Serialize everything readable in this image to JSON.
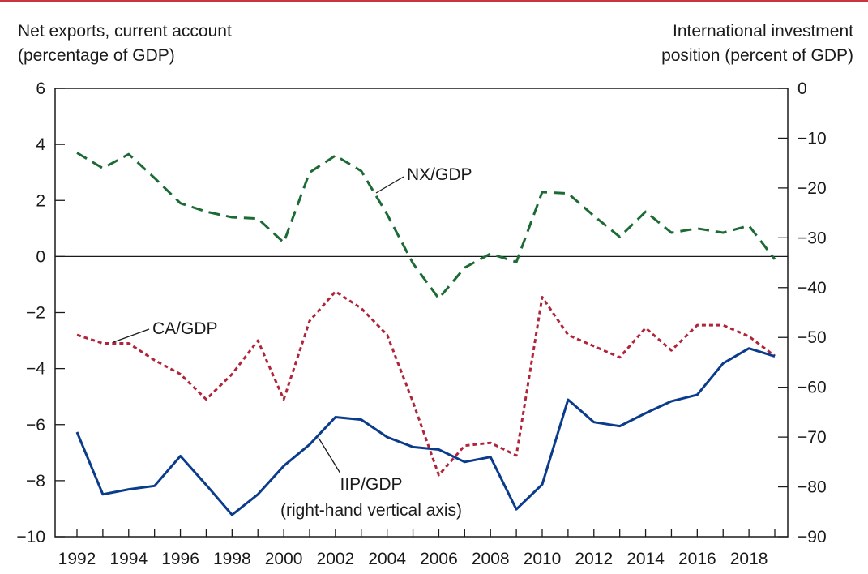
{
  "chart_data": {
    "type": "line",
    "left_axis_title": [
      "Net exports, current account",
      "(percentage of GDP)"
    ],
    "right_axis_title": [
      "International investment",
      "position (percent of GDP)"
    ],
    "x": [
      1992,
      1993,
      1994,
      1995,
      1996,
      1997,
      1998,
      1999,
      2000,
      2001,
      2002,
      2003,
      2004,
      2005,
      2006,
      2007,
      2008,
      2009,
      2010,
      2011,
      2012,
      2013,
      2014,
      2015,
      2016,
      2017,
      2018,
      2019
    ],
    "xlim": [
      1992,
      2019
    ],
    "x_ticks": [
      1992,
      1994,
      1996,
      1998,
      2000,
      2002,
      2004,
      2006,
      2008,
      2010,
      2012,
      2014,
      2016,
      2018
    ],
    "left_ylim": [
      -10,
      6
    ],
    "left_ticks": [
      6,
      4,
      2,
      0,
      -2,
      -4,
      -6,
      -8,
      -10
    ],
    "right_ylim": [
      -90,
      0
    ],
    "right_ticks": [
      0,
      -10,
      -20,
      -30,
      -40,
      -50,
      -60,
      -70,
      -80,
      -90
    ],
    "zero_line": true,
    "grid": false,
    "series": [
      {
        "name": "NX/GDP",
        "axis": "left",
        "style": "dashed",
        "color": "#1c6b35",
        "values": [
          3.7,
          3.15,
          3.65,
          2.8,
          1.9,
          1.6,
          1.4,
          1.35,
          0.5,
          3.0,
          3.6,
          3.05,
          1.5,
          -0.25,
          -1.5,
          -0.4,
          0.1,
          -0.2,
          2.3,
          2.25,
          1.45,
          0.7,
          1.6,
          0.85,
          1.0,
          0.85,
          1.1,
          -0.1
        ]
      },
      {
        "name": "CA/GDP",
        "axis": "left",
        "style": "dotted",
        "color": "#b0253a",
        "values": [
          -2.8,
          -3.1,
          -3.1,
          -3.7,
          -4.2,
          -5.1,
          -4.2,
          -3.0,
          -5.1,
          -2.3,
          -1.25,
          -1.85,
          -2.8,
          -5.2,
          -7.8,
          -6.75,
          -6.65,
          -7.1,
          -1.45,
          -2.8,
          -3.2,
          -3.6,
          -2.55,
          -3.35,
          -2.45,
          -2.45,
          -2.85,
          -3.55
        ]
      },
      {
        "name": "IIP/GDP",
        "axis": "right",
        "style": "solid",
        "color": "#0b3c8c",
        "values": [
          -69,
          -81.5,
          -80.5,
          -79.8,
          -73.8,
          -79.6,
          -85.6,
          -81.5,
          -75.8,
          -71.5,
          -66,
          -66.5,
          -70,
          -72,
          -72.5,
          -75,
          -74,
          -84.5,
          -79.5,
          -62.5,
          -67,
          -67.8,
          -65.2,
          -62.8,
          -61.5,
          -55.2,
          -52.2,
          -53.8
        ]
      }
    ],
    "annotations": [
      {
        "text": "NX/GDP",
        "series": "NX/GDP"
      },
      {
        "text": "CA/GDP",
        "series": "CA/GDP"
      },
      {
        "text": "IIP/GDP",
        "series": "IIP/GDP"
      },
      {
        "text": "(right-hand vertical axis)",
        "series": "IIP/GDP"
      }
    ]
  }
}
